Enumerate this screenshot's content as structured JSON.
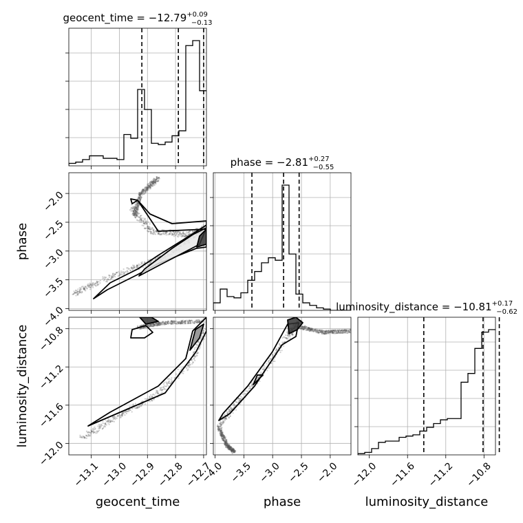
{
  "chart_data": {
    "type": "corner",
    "parameters": [
      "geocent_time",
      "phase",
      "luminosity_distance"
    ],
    "grid": true,
    "titles": [
      {
        "param": "geocent_time",
        "label": "geocent_time = ",
        "median": "−12.79",
        "plus": "+0.09",
        "minus": "−0.13"
      },
      {
        "param": "phase",
        "label": "phase = ",
        "median": "−2.81",
        "plus": "+0.27",
        "minus": "−0.55"
      },
      {
        "param": "luminosity_distance",
        "label": "luminosity_distance = ",
        "median": "−10.81",
        "plus": "+0.17",
        "minus": "−0.62"
      }
    ],
    "axis_labels": {
      "x": [
        "geocent_time",
        "phase",
        "luminosity_distance"
      ],
      "y": [
        "phase",
        "luminosity_distance"
      ]
    },
    "ranges": {
      "geocent_time": [
        -13.18,
        -12.69
      ],
      "phase": [
        -4.03,
        -1.64
      ],
      "luminosity_distance": [
        -12.12,
        -10.68
      ]
    },
    "ticks": {
      "geocent_time": {
        "values": [
          -13.1,
          -13.0,
          -12.9,
          -12.8,
          -12.7
        ],
        "labels": [
          "−13.1",
          "−13.0",
          "−12.9",
          "−12.8",
          "−12.7"
        ]
      },
      "phase": {
        "values": [
          -4.0,
          -3.5,
          -3.0,
          -2.5,
          -2.0
        ],
        "labels": [
          "−4.0",
          "−3.5",
          "−3.0",
          "−2.5",
          "−2.0"
        ]
      },
      "luminosity_distance": {
        "values": [
          -12.0,
          -11.6,
          -11.2,
          -10.8
        ],
        "labels": [
          "−12.0",
          "−11.6",
          "−11.2",
          "−10.8"
        ]
      }
    },
    "quantiles": {
      "geocent_time": [
        -12.92,
        -12.79,
        -12.7
      ],
      "phase": [
        -3.36,
        -2.81,
        -2.54
      ],
      "luminosity_distance": [
        -11.43,
        -10.81,
        -10.64
      ]
    },
    "histograms": {
      "geocent_time": {
        "edges_start": -13.18,
        "edges_step": 0.0245,
        "counts": [
          0.02,
          0.03,
          0.05,
          0.08,
          0.08,
          0.06,
          0.06,
          0.05,
          0.25,
          0.22,
          0.61,
          0.45,
          0.18,
          0.17,
          0.19,
          0.24,
          0.28,
          0.96,
          1.0,
          0.6
        ]
      },
      "phase": {
        "edges_start": -4.03,
        "edges_step": 0.1195,
        "counts": [
          0.06,
          0.17,
          0.11,
          0.1,
          0.14,
          0.24,
          0.31,
          0.38,
          0.42,
          0.4,
          1.0,
          0.45,
          0.13,
          0.06,
          0.04,
          0.02,
          0.01,
          0.0,
          0.0,
          0.0
        ]
      },
      "luminosity_distance": {
        "edges_start": -12.12,
        "edges_step": 0.072,
        "counts": [
          0.01,
          0.02,
          0.05,
          0.1,
          0.11,
          0.11,
          0.14,
          0.15,
          0.16,
          0.19,
          0.22,
          0.25,
          0.28,
          0.29,
          0.29,
          0.58,
          0.65,
          0.85,
          0.98,
          1.0
        ]
      }
    }
  }
}
